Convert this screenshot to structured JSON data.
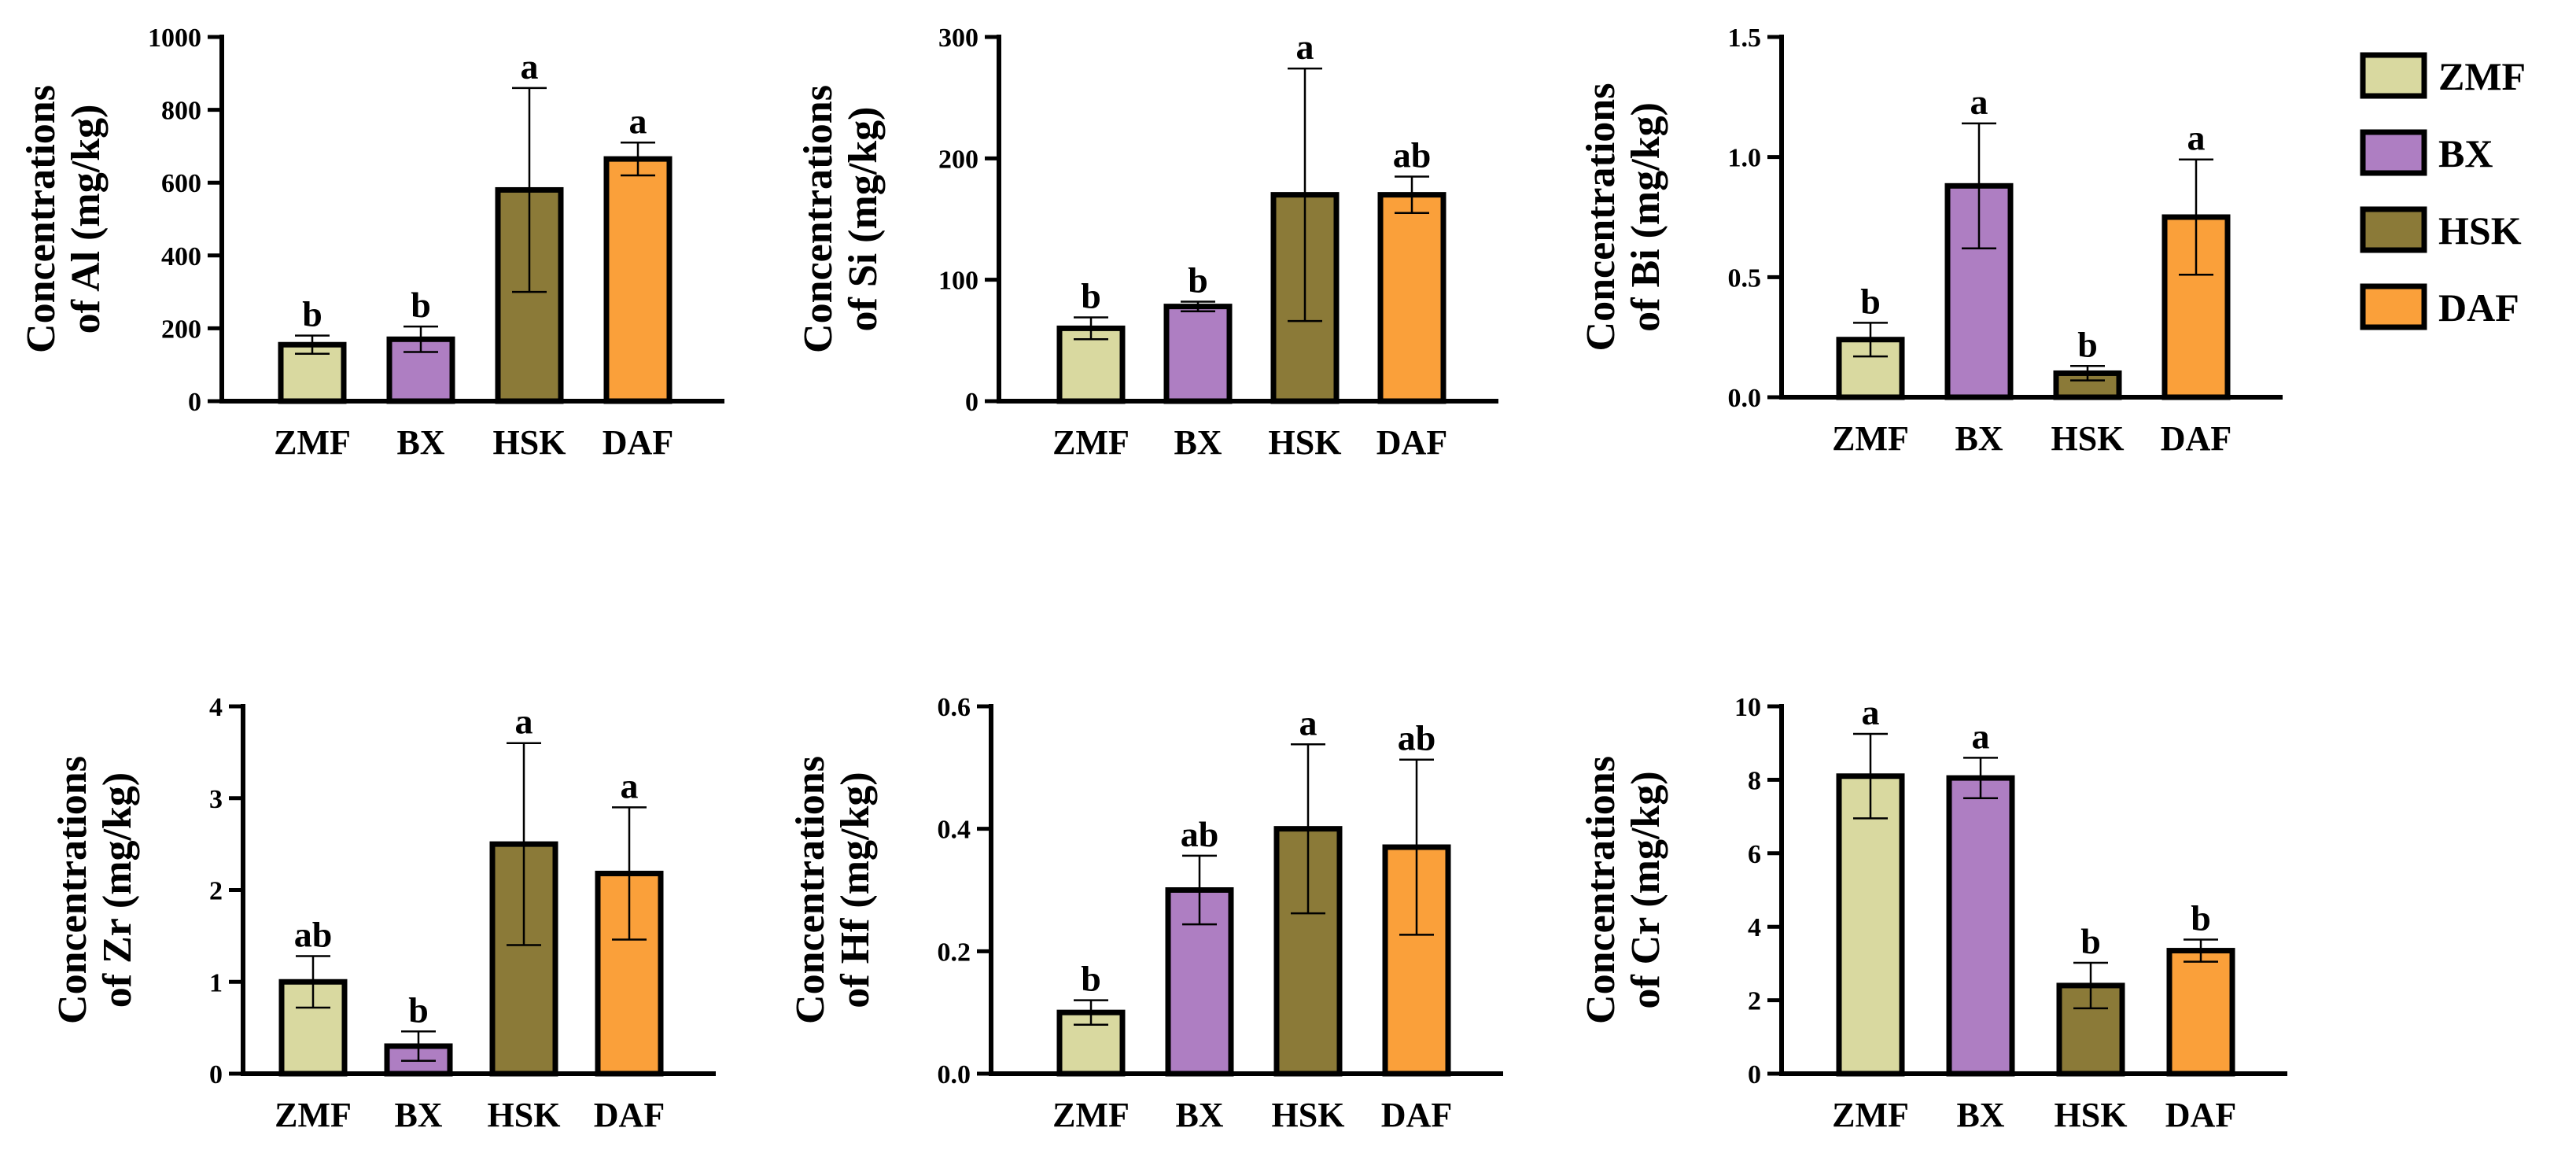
{
  "legend": [
    {
      "name": "ZMF",
      "color": "#D9D9A0"
    },
    {
      "name": "BX",
      "color": "#AE7EC2"
    },
    {
      "name": "HSK",
      "color": "#8B7A38"
    },
    {
      "name": "DAF",
      "color": "#FAA03A"
    }
  ],
  "chart_data": [
    {
      "type": "bar",
      "element": "Al",
      "ylabel_line1": "Concentrations",
      "ylabel_line2": "of Al (mg/kg)",
      "categories": [
        "ZMF",
        "BX",
        "HSK",
        "DAF"
      ],
      "values": [
        155,
        170,
        580,
        665
      ],
      "errors": [
        25,
        35,
        280,
        45
      ],
      "significance": [
        "b",
        "b",
        "a",
        "a"
      ],
      "ylim": [
        0,
        1000
      ],
      "yticks": [
        0,
        200,
        400,
        600,
        800,
        1000
      ],
      "ytick_labels": [
        "0",
        "200",
        "400",
        "600",
        "800",
        "1000"
      ]
    },
    {
      "type": "bar",
      "element": "Si",
      "ylabel_line1": "Concentrations",
      "ylabel_line2": "of Si (mg/kg)",
      "categories": [
        "ZMF",
        "BX",
        "HSK",
        "DAF"
      ],
      "values": [
        60,
        78,
        170,
        170
      ],
      "errors": [
        9,
        4,
        104,
        15
      ],
      "significance": [
        "b",
        "b",
        "a",
        "ab"
      ],
      "ylim": [
        0,
        300
      ],
      "yticks": [
        0,
        100,
        200,
        300
      ],
      "ytick_labels": [
        "0",
        "100",
        "200",
        "300"
      ]
    },
    {
      "type": "bar",
      "element": "Bi",
      "ylabel_line1": "Concentrations",
      "ylabel_line2": "of Bi (mg/kg)",
      "categories": [
        "ZMF",
        "BX",
        "HSK",
        "DAF"
      ],
      "values": [
        0.24,
        0.88,
        0.1,
        0.75
      ],
      "errors": [
        0.07,
        0.26,
        0.03,
        0.24
      ],
      "significance": [
        "b",
        "a",
        "b",
        "a"
      ],
      "ylim": [
        0,
        1.5
      ],
      "yticks": [
        0,
        0.5,
        1.0,
        1.5
      ],
      "ytick_labels": [
        "0.0",
        "0.5",
        "1.0",
        "1.5"
      ]
    },
    {
      "type": "bar",
      "element": "Zr",
      "ylabel_line1": "Concentrations",
      "ylabel_line2": "of Zr (mg/kg)",
      "categories": [
        "ZMF",
        "BX",
        "HSK",
        "DAF"
      ],
      "values": [
        1.0,
        0.3,
        2.5,
        2.18
      ],
      "errors": [
        0.28,
        0.16,
        1.1,
        0.72
      ],
      "significance": [
        "ab",
        "b",
        "a",
        "a"
      ],
      "ylim": [
        0,
        4
      ],
      "yticks": [
        0,
        1,
        2,
        3,
        4
      ],
      "ytick_labels": [
        "0",
        "1",
        "2",
        "3",
        "4"
      ]
    },
    {
      "type": "bar",
      "element": "Hf",
      "ylabel_line1": "Concentrations",
      "ylabel_line2": "of Hf (mg/kg)",
      "categories": [
        "ZMF",
        "BX",
        "HSK",
        "DAF"
      ],
      "values": [
        0.1,
        0.3,
        0.4,
        0.37
      ],
      "errors": [
        0.02,
        0.056,
        0.138,
        0.143
      ],
      "significance": [
        "b",
        "ab",
        "a",
        "ab"
      ],
      "ylim": [
        0,
        0.6
      ],
      "yticks": [
        0,
        0.2,
        0.4,
        0.6
      ],
      "ytick_labels": [
        "0.0",
        "0.2",
        "0.4",
        "0.6"
      ]
    },
    {
      "type": "bar",
      "element": "Cr",
      "ylabel_line1": "Concentrations",
      "ylabel_line2": "of Cr (mg/kg)",
      "categories": [
        "ZMF",
        "BX",
        "HSK",
        "DAF"
      ],
      "values": [
        8.1,
        8.05,
        2.4,
        3.35
      ],
      "errors": [
        1.15,
        0.55,
        0.62,
        0.3
      ],
      "significance": [
        "a",
        "a",
        "b",
        "b"
      ],
      "ylim": [
        0,
        10
      ],
      "yticks": [
        0,
        2,
        4,
        6,
        8,
        10
      ],
      "ytick_labels": [
        "0",
        "2",
        "4",
        "6",
        "8",
        "10"
      ]
    }
  ]
}
